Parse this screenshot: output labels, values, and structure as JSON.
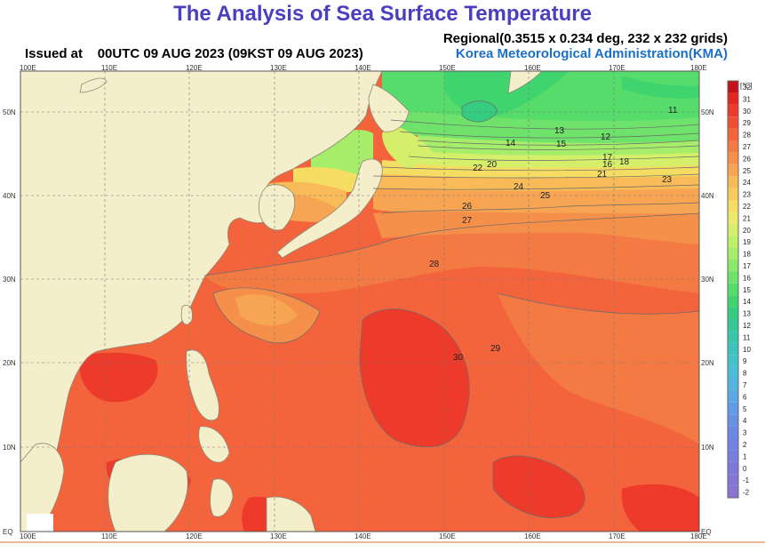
{
  "header": {
    "title": "The Analysis of Sea Surface Temperature",
    "regional": "Regional(0.3515 x 0.234 deg, 232 x 232 grids)",
    "issued_label": "Issued at",
    "issued_time": "00UTC 09 AUG 2023 (09KST 09 AUG 2023)",
    "agency": "Korea Meteorological Administration(KMA)"
  },
  "map": {
    "lon_labels": [
      "100E",
      "110E",
      "120E",
      "130E",
      "140E",
      "150E",
      "160E",
      "170E",
      "180E"
    ],
    "lat_labels": [
      "50N",
      "40N",
      "30N",
      "20N",
      "10N",
      "EQ"
    ],
    "contour_labels": [
      {
        "text": "11"
      },
      {
        "text": "12"
      },
      {
        "text": "13"
      },
      {
        "text": "14"
      },
      {
        "text": "15"
      },
      {
        "text": "16"
      },
      {
        "text": "17"
      },
      {
        "text": "18"
      },
      {
        "text": "20"
      },
      {
        "text": "21"
      },
      {
        "text": "22"
      },
      {
        "text": "23"
      },
      {
        "text": "24"
      },
      {
        "text": "25"
      },
      {
        "text": "26"
      },
      {
        "text": "27"
      },
      {
        "text": "28"
      },
      {
        "text": "29"
      },
      {
        "text": "30"
      }
    ]
  },
  "colorbar": {
    "unit": "[℃]",
    "levels": [
      "32",
      "31",
      "30",
      "29",
      "28",
      "27",
      "26",
      "25",
      "24",
      "23",
      "22",
      "21",
      "20",
      "19",
      "18",
      "17",
      "16",
      "15",
      "14",
      "13",
      "12",
      "11",
      "10",
      "9",
      "8",
      "7",
      "6",
      "5",
      "4",
      "3",
      "2",
      "1",
      "0",
      "-1",
      "-2"
    ],
    "colors": [
      "#c4121a",
      "#e0261f",
      "#ee3a2a",
      "#f04e32",
      "#f4643c",
      "#f47a44",
      "#f5904a",
      "#f7a552",
      "#f9ba58",
      "#f7cc5c",
      "#f5dc62",
      "#ecea6a",
      "#d6ef6a",
      "#bff06a",
      "#a6ee6a",
      "#8ae86a",
      "#6ee26a",
      "#56dc6a",
      "#3fd46e",
      "#36cc80",
      "#34c896",
      "#36c6aa",
      "#3cc4bc",
      "#44c2cc",
      "#4cbcd8",
      "#54b4e0",
      "#5aa8e4",
      "#609ce6",
      "#6692e6",
      "#6c88e4",
      "#7282e0",
      "#787cdc",
      "#7e78d8",
      "#8476d4",
      "#8a74d0"
    ]
  }
}
